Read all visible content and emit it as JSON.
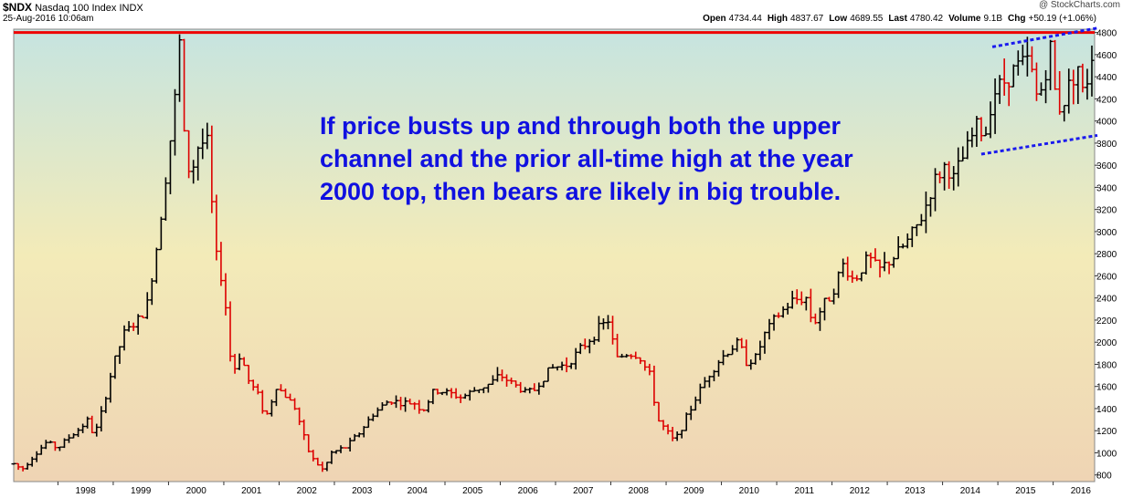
{
  "header": {
    "symbol": "$NDX",
    "name": "Nasdaq 100 Index",
    "exchange": "INDX",
    "date": "25-Aug-2016 10:06am",
    "watermark": "@ StockCharts.com",
    "stats": [
      {
        "label": "Open",
        "value": "4734.44"
      },
      {
        "label": "High",
        "value": "4837.67"
      },
      {
        "label": "Low",
        "value": "4689.55"
      },
      {
        "label": "Last",
        "value": "4780.42"
      },
      {
        "label": "Volume",
        "value": "9.1B"
      },
      {
        "label": "Chg",
        "value": "+50.19 (+1.06%)"
      }
    ]
  },
  "annotation": "If price busts up and through both the upper channel and the prior all-time high at the year 2000 top, then bears are likely in big trouble.",
  "colors": {
    "up": "#000000",
    "down": "#dd0000",
    "resistance": "#ee0000",
    "channel": "#1a1aee",
    "annotation": "#1010e0",
    "bg_top": "#c6e4e0",
    "bg_mid": "#f3ebb8",
    "bg_bottom": "#efd4b4"
  },
  "chart_data": {
    "type": "ohlc",
    "title": "$NDX Nasdaq 100 Index INDX",
    "x_ticks": [
      "1998",
      "1999",
      "2000",
      "2001",
      "2002",
      "2003",
      "2004",
      "2005",
      "2006",
      "2007",
      "2008",
      "2009",
      "2010",
      "2011",
      "2012",
      "2013",
      "2014",
      "2015",
      "2016"
    ],
    "y_ticks": [
      800,
      1000,
      1200,
      1400,
      1600,
      1800,
      2000,
      2200,
      2400,
      2600,
      2800,
      3000,
      3200,
      3400,
      3600,
      3800,
      4000,
      4200,
      4400,
      4600,
      4800
    ],
    "xlim": [
      1997.2,
      2016.75
    ],
    "ylim": [
      740,
      4830
    ],
    "y_axis_side": "right",
    "grid": false,
    "resistance_level": 4800,
    "channel": {
      "upper": [
        [
          2014.9,
          4670
        ],
        [
          2016.8,
          4840
        ]
      ],
      "lower": [
        [
          2014.7,
          3700
        ],
        [
          2016.8,
          3870
        ]
      ]
    },
    "price_path": [
      [
        1997.2,
        900
      ],
      [
        1997.35,
        850
      ],
      [
        1997.5,
        940
      ],
      [
        1997.65,
        1020
      ],
      [
        1997.8,
        1100
      ],
      [
        1998.0,
        1040
      ],
      [
        1998.15,
        1120
      ],
      [
        1998.35,
        1200
      ],
      [
        1998.55,
        1300
      ],
      [
        1998.65,
        1140
      ],
      [
        1998.8,
        1380
      ],
      [
        1999.0,
        1800
      ],
      [
        1999.2,
        2080
      ],
      [
        1999.45,
        2200
      ],
      [
        1999.6,
        2300
      ],
      [
        1999.8,
        2900
      ],
      [
        1999.95,
        3500
      ],
      [
        2000.1,
        4100
      ],
      [
        2000.2,
        4704
      ],
      [
        2000.3,
        3700
      ],
      [
        2000.4,
        3500
      ],
      [
        2000.55,
        3800
      ],
      [
        2000.7,
        3800
      ],
      [
        2000.85,
        2800
      ],
      [
        2001.0,
        2500
      ],
      [
        2001.15,
        1700
      ],
      [
        2001.3,
        1900
      ],
      [
        2001.45,
        1650
      ],
      [
        2001.65,
        1500
      ],
      [
        2001.75,
        1300
      ],
      [
        2001.95,
        1600
      ],
      [
        2002.15,
        1500
      ],
      [
        2002.3,
        1400
      ],
      [
        2002.5,
        1050
      ],
      [
        2002.6,
        950
      ],
      [
        2002.8,
        840
      ],
      [
        2002.95,
        1000
      ],
      [
        2003.2,
        1050
      ],
      [
        2003.45,
        1180
      ],
      [
        2003.7,
        1350
      ],
      [
        2004.0,
        1480
      ],
      [
        2004.2,
        1450
      ],
      [
        2004.45,
        1450
      ],
      [
        2004.6,
        1380
      ],
      [
        2004.8,
        1560
      ],
      [
        2005.0,
        1550
      ],
      [
        2005.3,
        1500
      ],
      [
        2005.55,
        1570
      ],
      [
        2005.8,
        1620
      ],
      [
        2006.0,
        1700
      ],
      [
        2006.3,
        1600
      ],
      [
        2006.45,
        1550
      ],
      [
        2006.6,
        1560
      ],
      [
        2006.9,
        1760
      ],
      [
        2007.2,
        1800
      ],
      [
        2007.5,
        1960
      ],
      [
        2007.8,
        2130
      ],
      [
        2007.95,
        2200
      ],
      [
        2008.1,
        1850
      ],
      [
        2008.3,
        1900
      ],
      [
        2008.5,
        1880
      ],
      [
        2008.7,
        1700
      ],
      [
        2008.85,
        1300
      ],
      [
        2009.0,
        1200
      ],
      [
        2009.15,
        1100
      ],
      [
        2009.4,
        1350
      ],
      [
        2009.6,
        1560
      ],
      [
        2009.8,
        1730
      ],
      [
        2010.0,
        1860
      ],
      [
        2010.3,
        2000
      ],
      [
        2010.45,
        1830
      ],
      [
        2010.6,
        1840
      ],
      [
        2010.8,
        2090
      ],
      [
        2011.0,
        2230
      ],
      [
        2011.3,
        2380
      ],
      [
        2011.55,
        2400
      ],
      [
        2011.65,
        2150
      ],
      [
        2011.8,
        2300
      ],
      [
        2012.0,
        2450
      ],
      [
        2012.2,
        2700
      ],
      [
        2012.4,
        2550
      ],
      [
        2012.65,
        2770
      ],
      [
        2012.85,
        2650
      ],
      [
        2013.1,
        2760
      ],
      [
        2013.35,
        2900
      ],
      [
        2013.6,
        3100
      ],
      [
        2013.85,
        3450
      ],
      [
        2014.05,
        3600
      ],
      [
        2014.2,
        3480
      ],
      [
        2014.4,
        3700
      ],
      [
        2014.65,
        4000
      ],
      [
        2014.75,
        3800
      ],
      [
        2014.9,
        4250
      ],
      [
        2015.1,
        4350
      ],
      [
        2015.35,
        4500
      ],
      [
        2015.6,
        4550
      ],
      [
        2015.65,
        4200
      ],
      [
        2015.8,
        4300
      ],
      [
        2015.95,
        4650
      ],
      [
        2016.05,
        4200
      ],
      [
        2016.15,
        4100
      ],
      [
        2016.3,
        4350
      ],
      [
        2016.45,
        4500
      ],
      [
        2016.55,
        4200
      ],
      [
        2016.7,
        4600
      ],
      [
        2016.75,
        4780
      ]
    ]
  }
}
